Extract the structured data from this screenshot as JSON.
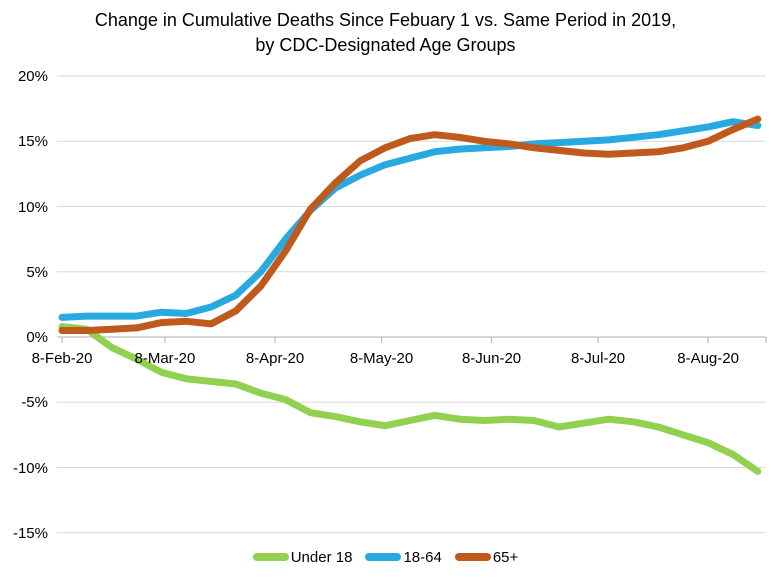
{
  "chart_data": {
    "type": "line",
    "title": "Change in Cumulative Deaths Since Febuary 1 vs. Same Period in 2019, by CDC-Designated Age Groups",
    "xlabel": "",
    "ylabel": "",
    "x_start": "8-Feb-20",
    "x_interval": "weekly",
    "x_end": "22-Aug-20",
    "ylim": [
      -15,
      20
    ],
    "grid": "horizontal-only",
    "legend_position": "bottom-center",
    "colors": {
      "grid": "#d9d9d9",
      "axis": "#bfbfbf",
      "text": "#000000",
      "background": "#ffffff"
    },
    "y_ticks": [
      {
        "label": "20%",
        "value": 20
      },
      {
        "label": "15%",
        "value": 15
      },
      {
        "label": "10%",
        "value": 10
      },
      {
        "label": "5%",
        "value": 5
      },
      {
        "label": "0%",
        "value": 0
      },
      {
        "label": "-5%",
        "value": -5
      },
      {
        "label": "-10%",
        "value": -10
      },
      {
        "label": "-15%",
        "value": -15
      }
    ],
    "x_ticks": [
      {
        "label": "8-Feb-20",
        "day": 0
      },
      {
        "label": "8-Mar-20",
        "day": 29
      },
      {
        "label": "8-Apr-20",
        "day": 60
      },
      {
        "label": "8-May-20",
        "day": 90
      },
      {
        "label": "8-Jun-20",
        "day": 121
      },
      {
        "label": "8-Jul-20",
        "day": 151
      },
      {
        "label": "8-Aug-20",
        "day": 182
      }
    ],
    "series": [
      {
        "name": "Under 18",
        "color": "#92d050",
        "values": [
          0.8,
          0.6,
          -0.8,
          -1.7,
          -2.7,
          -3.2,
          -3.4,
          -3.6,
          -4.3,
          -4.8,
          -5.8,
          -6.1,
          -6.5,
          -6.8,
          -6.4,
          -6.0,
          -6.3,
          -6.4,
          -6.3,
          -6.4,
          -6.9,
          -6.6,
          -6.3,
          -6.5,
          -6.9,
          -7.5,
          -8.1,
          -9.0,
          -10.3
        ]
      },
      {
        "name": "18-64",
        "color": "#29a9e1",
        "values": [
          1.5,
          1.6,
          1.6,
          1.6,
          1.9,
          1.8,
          2.3,
          3.2,
          5.0,
          7.5,
          9.7,
          11.4,
          12.4,
          13.2,
          13.7,
          14.2,
          14.4,
          14.5,
          14.6,
          14.8,
          14.9,
          15.0,
          15.1,
          15.3,
          15.5,
          15.8,
          16.1,
          16.5,
          16.2
        ]
      },
      {
        "name": "65+",
        "color": "#c0591c",
        "values": [
          0.5,
          0.5,
          0.6,
          0.7,
          1.1,
          1.2,
          1.0,
          2.0,
          3.9,
          6.6,
          9.8,
          11.8,
          13.5,
          14.5,
          15.2,
          15.5,
          15.3,
          15.0,
          14.8,
          14.5,
          14.3,
          14.1,
          14.0,
          14.1,
          14.2,
          14.5,
          15.0,
          15.9,
          16.7
        ]
      }
    ]
  }
}
